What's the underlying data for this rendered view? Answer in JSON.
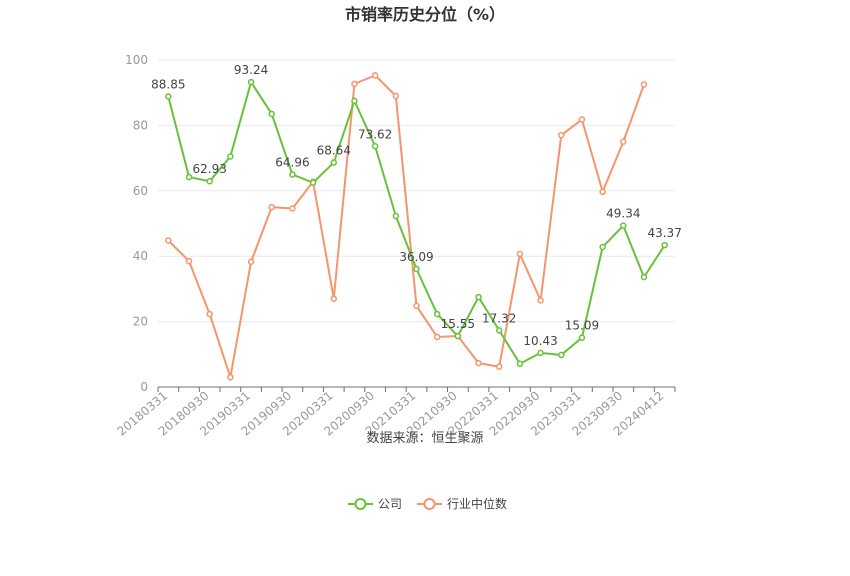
{
  "chart_data": {
    "type": "line",
    "title": "市销率历史分位（%）",
    "source": "数据来源：恒生聚源",
    "ylim": [
      0,
      100
    ],
    "yticks": [
      0,
      20,
      40,
      60,
      80,
      100
    ],
    "x_labels": [
      "20180331",
      "20180930",
      "20190331",
      "20190930",
      "20200331",
      "20200930",
      "20210331",
      "20210930",
      "20220331",
      "20220930",
      "20230331",
      "20230930",
      "20240412"
    ],
    "legend_position": "bottom-center",
    "series": [
      {
        "name": "公司",
        "color": "#67c23a",
        "values": [
          88.85,
          64.2,
          62.93,
          70.5,
          93.24,
          83.5,
          64.96,
          62.5,
          68.64,
          87.5,
          73.62,
          52.3,
          36.09,
          22.3,
          15.55,
          27.5,
          17.32,
          7.1,
          10.43,
          9.8,
          15.09,
          42.8,
          49.34,
          33.6,
          43.37
        ],
        "labels": {
          "0": "88.85",
          "2": "62.93",
          "4": "93.24",
          "6": "64.96",
          "8": "68.64",
          "10": "73.62",
          "12": "36.09",
          "14": "15.55",
          "16": "17.32",
          "18": "10.43",
          "20": "15.09",
          "22": "49.34",
          "24": "43.37"
        }
      },
      {
        "name": "行业中位数",
        "color": "#f5956b",
        "values": [
          44.8,
          38.5,
          22.3,
          3.0,
          38.3,
          55.0,
          54.6,
          62.8,
          27.0,
          92.7,
          95.3,
          89.0,
          24.8,
          15.3,
          15.6,
          7.3,
          6.2,
          40.7,
          26.5,
          77.0,
          81.8,
          59.7,
          75.0,
          92.5,
          null
        ]
      }
    ]
  }
}
